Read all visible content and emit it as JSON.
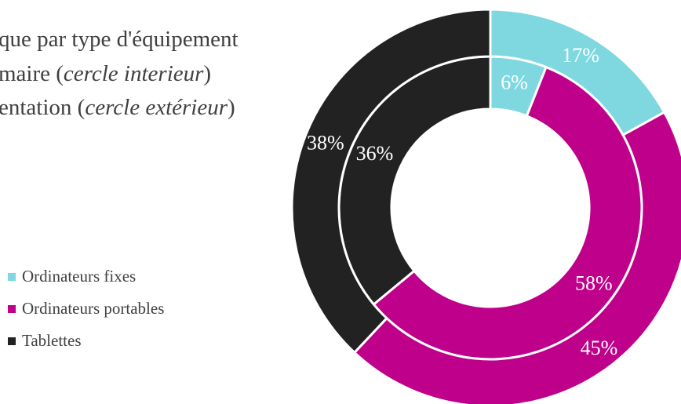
{
  "chart_data": {
    "type": "donut",
    "title": {
      "line1": "que par type d'équipement",
      "line2_prefix": "maire (",
      "line2_italic": "cercle interieur",
      "line2_suffix": ")",
      "line3_prefix": "entation (",
      "line3_italic": "cercle extérieur",
      "line3_suffix": ")"
    },
    "categories": [
      "Ordinateurs fixes",
      "Ordinateurs portables",
      "Tablettes"
    ],
    "colors": [
      "#7fd8e0",
      "#bf008b",
      "#222222"
    ],
    "series": [
      {
        "ring": "inner",
        "values": [
          6,
          58,
          36
        ],
        "labels": [
          "6%",
          "58%",
          "36%"
        ]
      },
      {
        "ring": "outer",
        "values": [
          17,
          45,
          38
        ],
        "labels": [
          "17%",
          "45%",
          "38%"
        ]
      }
    ],
    "legend_position": "left"
  }
}
